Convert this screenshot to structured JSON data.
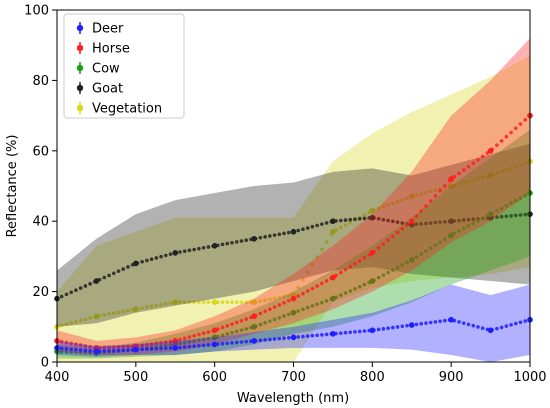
{
  "chart_data": {
    "type": "scatter",
    "xlabel": "Wavelength (nm)",
    "ylabel": "Reflectance (%)",
    "xlim": [
      400,
      1000
    ],
    "ylim": [
      0,
      100
    ],
    "xticks": [
      "400",
      "500",
      "600",
      "700",
      "800",
      "900",
      "1000"
    ],
    "yticks": [
      "0",
      "20",
      "40",
      "60",
      "80",
      "100"
    ],
    "grid": false,
    "legend": {
      "placement": "top-left",
      "entries": [
        "Deer",
        "Horse",
        "Cow",
        "Goat",
        "Vegetation"
      ]
    },
    "series": [
      {
        "name": "Deer",
        "color": "#1f1fff",
        "x": [
          400,
          450,
          500,
          550,
          600,
          650,
          700,
          750,
          800,
          850,
          900,
          950,
          1000
        ],
        "y": [
          4,
          3,
          3.5,
          4,
          5,
          6,
          7,
          8,
          9,
          10.5,
          12,
          9,
          12
        ],
        "err": [
          2,
          1.5,
          1.5,
          2,
          2,
          2.5,
          3,
          4,
          5,
          7,
          10,
          10,
          10
        ]
      },
      {
        "name": "Horse",
        "color": "#ff1f1f",
        "x": [
          400,
          450,
          500,
          550,
          600,
          650,
          700,
          750,
          800,
          850,
          900,
          950,
          1000
        ],
        "y": [
          6,
          4,
          4.5,
          6,
          9,
          13,
          18,
          24,
          31,
          40,
          52,
          60,
          70
        ],
        "err": [
          3,
          2,
          2.5,
          3,
          4,
          5,
          7,
          9,
          11,
          14,
          18,
          20,
          22
        ]
      },
      {
        "name": "Cow",
        "color": "#18a018",
        "x": [
          400,
          450,
          500,
          550,
          600,
          650,
          700,
          750,
          800,
          850,
          900,
          950,
          1000
        ],
        "y": [
          3,
          2.5,
          3.5,
          5,
          7,
          10,
          14,
          18,
          23,
          29,
          36,
          42,
          48
        ],
        "err": [
          2,
          1.5,
          2,
          3,
          4,
          5,
          6,
          8,
          10,
          12,
          14,
          16,
          18
        ]
      },
      {
        "name": "Goat",
        "color": "#222222",
        "x": [
          400,
          450,
          500,
          550,
          600,
          650,
          700,
          750,
          800,
          850,
          900,
          950,
          1000
        ],
        "y": [
          18,
          23,
          28,
          31,
          33,
          35,
          37,
          40,
          41,
          39,
          40,
          41,
          42
        ],
        "err": [
          8,
          12,
          14,
          15,
          15,
          15,
          14,
          14,
          14,
          14,
          16,
          18,
          20
        ]
      },
      {
        "name": "Vegetation",
        "color": "#d8d820",
        "x": [
          400,
          450,
          500,
          550,
          600,
          650,
          700,
          750,
          800,
          850,
          900,
          950,
          1000
        ],
        "y": [
          10,
          13,
          15,
          17,
          17,
          17,
          19,
          37,
          43,
          47,
          50,
          53,
          57
        ],
        "err": [
          10,
          20,
          22,
          24,
          24,
          24,
          22,
          20,
          22,
          24,
          26,
          28,
          30
        ]
      }
    ]
  }
}
